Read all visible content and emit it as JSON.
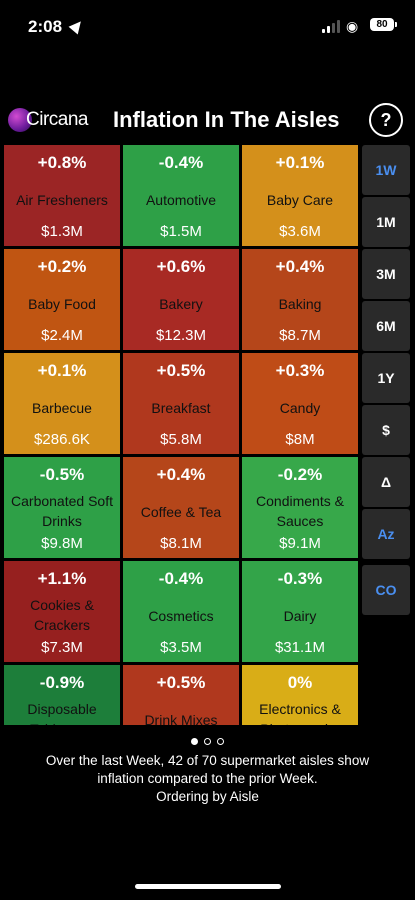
{
  "status_bar": {
    "time": "2:08",
    "battery": "80"
  },
  "header": {
    "logo_text": "Circana",
    "title": "Inflation In The Aisles",
    "help_label": "?"
  },
  "tiles": [
    {
      "pct": "+0.8%",
      "name": "Air Fresheners",
      "amount": "$1.3M",
      "color": "#9b2525"
    },
    {
      "pct": "-0.4%",
      "name": "Automotive",
      "amount": "$1.5M",
      "color": "#2ea047"
    },
    {
      "pct": "+0.1%",
      "name": "Baby Care",
      "amount": "$3.6M",
      "color": "#d4901b"
    },
    {
      "pct": "+0.2%",
      "name": "Baby Food",
      "amount": "$2.4M",
      "color": "#c05512"
    },
    {
      "pct": "+0.6%",
      "name": "Bakery",
      "amount": "$12.3M",
      "color": "#a82a24"
    },
    {
      "pct": "+0.4%",
      "name": "Baking",
      "amount": "$8.7M",
      "color": "#b5461a"
    },
    {
      "pct": "+0.1%",
      "name": "Barbecue",
      "amount": "$286.6K",
      "color": "#d4901b"
    },
    {
      "pct": "+0.5%",
      "name": "Breakfast",
      "amount": "$5.8M",
      "color": "#b0381e"
    },
    {
      "pct": "+0.3%",
      "name": "Candy",
      "amount": "$8M",
      "color": "#bf4c17"
    },
    {
      "pct": "-0.5%",
      "name": "Carbonated Soft Drinks",
      "amount": "$9.8M",
      "color": "#2ea047"
    },
    {
      "pct": "+0.4%",
      "name": "Coffee & Tea",
      "amount": "$8.1M",
      "color": "#b5461a"
    },
    {
      "pct": "-0.2%",
      "name": "Condiments & Sauces",
      "amount": "$9.1M",
      "color": "#37a84a"
    },
    {
      "pct": "+1.1%",
      "name": "Cookies & Crackers",
      "amount": "$7.3M",
      "color": "#96201f"
    },
    {
      "pct": "-0.4%",
      "name": "Cosmetics",
      "amount": "$3.5M",
      "color": "#2ea047"
    },
    {
      "pct": "-0.3%",
      "name": "Dairy",
      "amount": "$31.1M",
      "color": "#33a449"
    },
    {
      "pct": "-0.9%",
      "name": "Disposable Tableware",
      "amount": "",
      "color": "#1d7e3a"
    },
    {
      "pct": "+0.5%",
      "name": "Drink Mixes",
      "amount": "",
      "color": "#b0381e"
    },
    {
      "pct": "0%",
      "name": "Electronics & Photography",
      "amount": "",
      "color": "#d9ad17"
    }
  ],
  "side_nav": [
    {
      "label": "1W",
      "active": true
    },
    {
      "label": "1M",
      "active": false
    },
    {
      "label": "3M",
      "active": false
    },
    {
      "label": "6M",
      "active": false
    },
    {
      "label": "1Y",
      "active": false
    },
    {
      "label": "$",
      "active": false
    },
    {
      "label": "Δ",
      "active": false
    },
    {
      "label": "Az",
      "active": true
    },
    {
      "label": "CO",
      "active": true
    }
  ],
  "summary": {
    "line1": "Over the last Week, 42 of 70 supermarket aisles show",
    "line2": "inflation compared to the prior Week.",
    "line3": "Ordering by Aisle"
  },
  "pager": {
    "count": 3,
    "active": 0
  }
}
